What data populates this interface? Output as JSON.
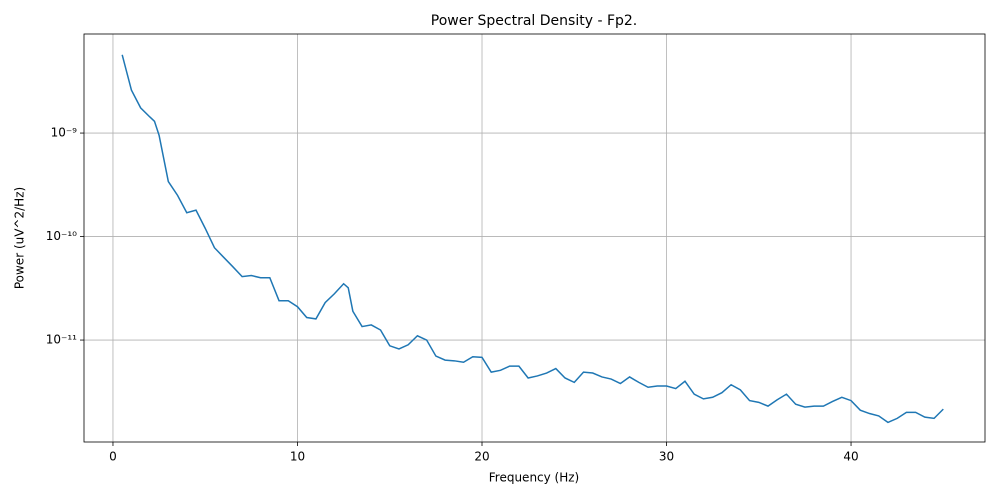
{
  "chart_data": {
    "type": "line",
    "title": "Power Spectral Density - Fp2.",
    "x_label": "Frequency (Hz)",
    "y_label": "Power (uV^2/Hz)",
    "y_scale": "log",
    "grid": true,
    "xlim": [
      -1.57,
      47.26
    ],
    "ylim": [
      1.035e-12,
      9.06e-09
    ],
    "xticks": [
      0,
      10,
      20,
      30,
      40
    ],
    "yticks": [
      {
        "value": 1e-11,
        "label": "10⁻¹¹"
      },
      {
        "value": 1e-10,
        "label": "10⁻¹⁰"
      },
      {
        "value": 1e-09,
        "label": "10⁻⁹"
      }
    ],
    "x": [
      0.5,
      1.0,
      1.5,
      2.0,
      2.25,
      2.5,
      3.0,
      3.5,
      4.0,
      4.5,
      5.0,
      5.5,
      6.0,
      6.5,
      7.0,
      7.5,
      8.0,
      8.5,
      9.0,
      9.5,
      10.0,
      10.5,
      11.0,
      11.5,
      12.0,
      12.5,
      12.75,
      13.0,
      13.5,
      14.0,
      14.5,
      15.0,
      15.5,
      16.0,
      16.5,
      17.0,
      17.5,
      18.0,
      18.5,
      19.0,
      19.5,
      20.0,
      20.5,
      21.0,
      21.5,
      22.0,
      22.5,
      23.0,
      23.5,
      24.0,
      24.5,
      25.0,
      25.5,
      26.0,
      26.5,
      27.0,
      27.5,
      28.0,
      28.5,
      29.0,
      29.5,
      30.0,
      30.5,
      31.0,
      31.5,
      32.0,
      32.5,
      33.0,
      33.5,
      34.0,
      34.5,
      35.0,
      35.5,
      36.0,
      36.5,
      37.0,
      37.5,
      38.0,
      38.5,
      39.0,
      39.5,
      40.0,
      40.5,
      41.0,
      41.5,
      42.0,
      42.5,
      43.0,
      43.5,
      44.0,
      44.5,
      45.0
    ],
    "series": [
      {
        "name": "Fp2",
        "color": "#1f77b4",
        "values": [
          5.7e-09,
          2.6e-09,
          1.75e-09,
          1.43e-09,
          1.3e-09,
          9.5e-10,
          3.4e-10,
          2.5e-10,
          1.7e-10,
          1.8e-10,
          1.2e-10,
          7.8e-11,
          6.3e-11,
          5.1e-11,
          4.1e-11,
          4.2e-11,
          4e-11,
          4e-11,
          2.4e-11,
          2.4e-11,
          2.1e-11,
          1.65e-11,
          1.6e-11,
          2.3e-11,
          2.8e-11,
          3.5e-11,
          3.2e-11,
          1.9e-11,
          1.35e-11,
          1.4e-11,
          1.25e-11,
          8.8e-12,
          8.2e-12,
          9e-12,
          1.1e-11,
          1e-11,
          7e-12,
          6.4e-12,
          6.3e-12,
          6.1e-12,
          6.9e-12,
          6.8e-12,
          4.9e-12,
          5.1e-12,
          5.6e-12,
          5.6e-12,
          4.3e-12,
          4.5e-12,
          4.8e-12,
          5.3e-12,
          4.3e-12,
          3.9e-12,
          4.9e-12,
          4.8e-12,
          4.4e-12,
          4.2e-12,
          3.8e-12,
          4.4e-12,
          3.9e-12,
          3.5e-12,
          3.6e-12,
          3.6e-12,
          3.4e-12,
          4e-12,
          3e-12,
          2.7e-12,
          2.8e-12,
          3.1e-12,
          3.7e-12,
          3.3e-12,
          2.6e-12,
          2.5e-12,
          2.3e-12,
          2.65e-12,
          3e-12,
          2.4e-12,
          2.25e-12,
          2.3e-12,
          2.3e-12,
          2.55e-12,
          2.8e-12,
          2.6e-12,
          2.1e-12,
          1.95e-12,
          1.85e-12,
          1.6e-12,
          1.75e-12,
          2e-12,
          2e-12,
          1.8e-12,
          1.75e-12,
          2.15e-12
        ]
      }
    ]
  }
}
